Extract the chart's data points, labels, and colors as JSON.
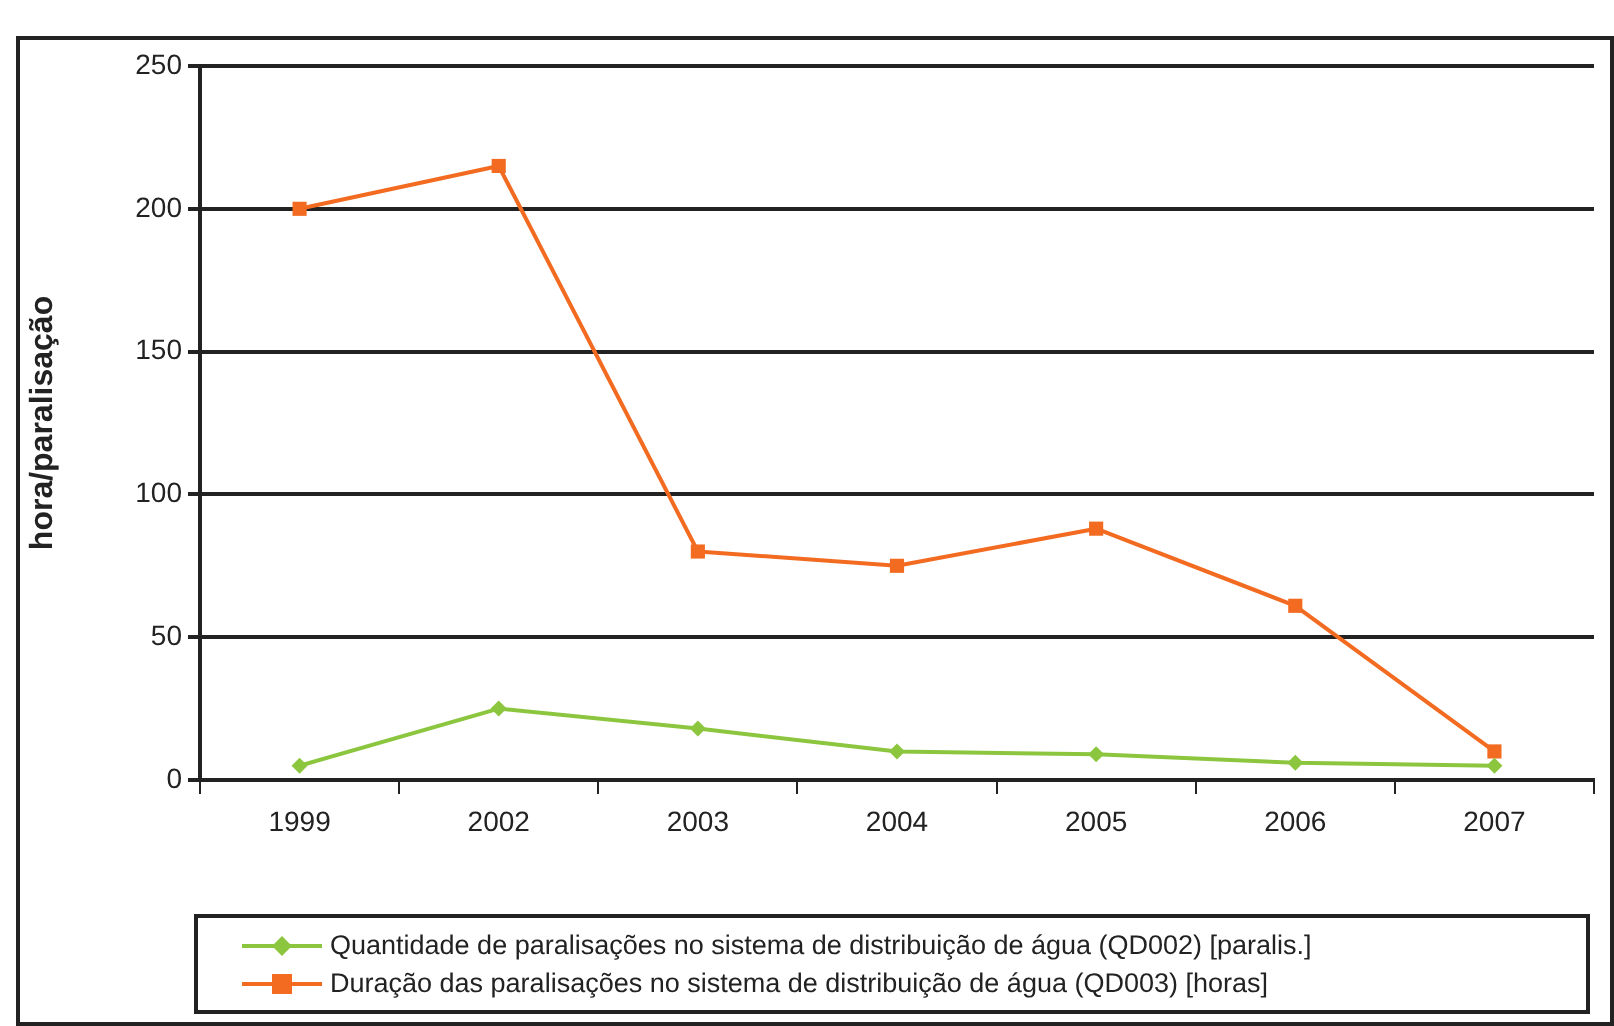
{
  "chart_data": {
    "type": "line",
    "ylabel": "hora/paralisação",
    "categories": [
      "1999",
      "2002",
      "2003",
      "2004",
      "2005",
      "2006",
      "2007"
    ],
    "series": [
      {
        "name": "Quantidade de paralisações no sistema de distribuição de água (QD002) [paralis.]",
        "color": "#8cc63f",
        "marker": "diamond",
        "values": [
          5,
          25,
          18,
          10,
          9,
          6,
          5
        ]
      },
      {
        "name": "Duração das paralisações no sistema de distribuição de água (QD003) [horas]",
        "color": "#f26b21",
        "marker": "square",
        "values": [
          200,
          215,
          80,
          75,
          88,
          61,
          10
        ]
      }
    ],
    "ylim": [
      0,
      250
    ],
    "yticks": [
      0,
      50,
      100,
      150,
      200,
      250
    ],
    "grid": "y",
    "legend": "bottom",
    "line_style": "solid"
  }
}
